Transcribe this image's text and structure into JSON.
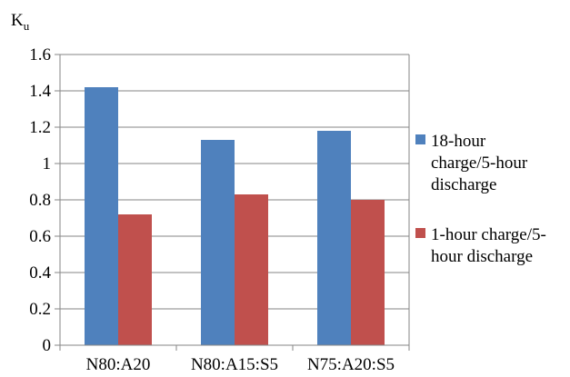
{
  "chart_data": {
    "type": "bar",
    "title": "",
    "xlabel": "",
    "ylabel": "K",
    "ylabel_subscript": "u",
    "categories": [
      "N80:A20",
      "N80:A15:S5",
      "N75:A20:S5"
    ],
    "series": [
      {
        "name": "18-hour charge/5-hour discharge",
        "name_lines": [
          "18-hour",
          "charge/5-hour",
          "discharge"
        ],
        "color": "#4F81BD",
        "values": [
          1.42,
          1.13,
          1.18
        ]
      },
      {
        "name": "1-hour charge/5-hour discharge",
        "name_lines": [
          "1-hour charge/5-",
          "hour discharge"
        ],
        "color": "#C0504D",
        "values": [
          0.72,
          0.83,
          0.8
        ]
      }
    ],
    "ylim": [
      0,
      1.6
    ],
    "yticks": [
      "0",
      "0.2",
      "0.4",
      "0.6",
      "0.8",
      "1",
      "1.2",
      "1.4",
      "1.6"
    ],
    "grid": true,
    "legend_position": "right"
  }
}
